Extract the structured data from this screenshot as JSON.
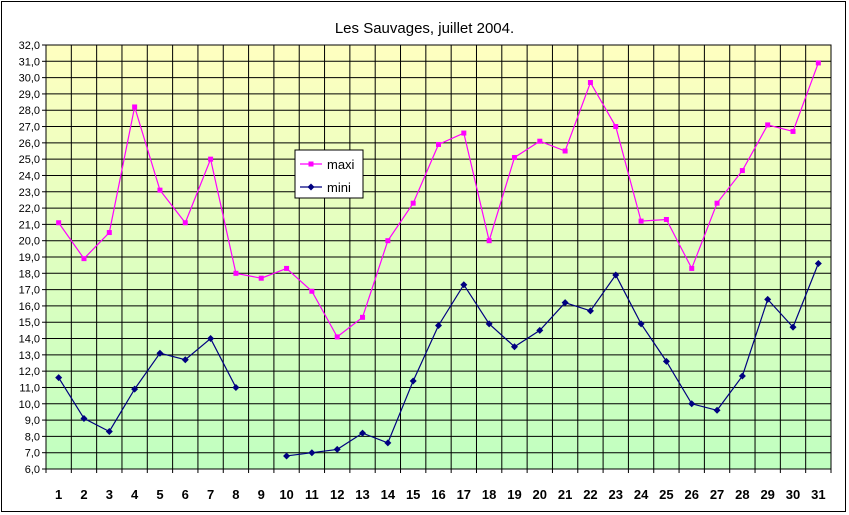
{
  "chart_data": {
    "type": "line",
    "title": "Les Sauvages, juillet 2004.",
    "xlabel": "",
    "ylabel": "",
    "categories": [
      "1",
      "2",
      "3",
      "4",
      "5",
      "6",
      "7",
      "8",
      "9",
      "10",
      "11",
      "12",
      "13",
      "14",
      "15",
      "16",
      "17",
      "18",
      "19",
      "20",
      "21",
      "22",
      "23",
      "24",
      "25",
      "26",
      "27",
      "28",
      "29",
      "30",
      "31"
    ],
    "ylim": [
      6.0,
      32.0
    ],
    "ytick_step": 1.0,
    "ytick_labels": [
      "6,0",
      "7,0",
      "8,0",
      "9,0",
      "10,0",
      "11,0",
      "12,0",
      "13,0",
      "14,0",
      "15,0",
      "16,0",
      "17,0",
      "18,0",
      "19,0",
      "20,0",
      "21,0",
      "22,0",
      "23,0",
      "24,0",
      "25,0",
      "26,0",
      "27,0",
      "28,0",
      "29,0",
      "30,0",
      "31,0",
      "32,0"
    ],
    "grid": true,
    "legend_position": "upper-center-left",
    "background_gradient": [
      "#ffffc0",
      "#c0ffc0"
    ],
    "series": [
      {
        "name": "maxi",
        "color": "#ff00ff",
        "marker": "square",
        "values": [
          21.1,
          18.9,
          20.5,
          28.2,
          23.1,
          21.1,
          25.0,
          18.0,
          17.7,
          18.3,
          16.9,
          14.1,
          15.3,
          20.0,
          22.3,
          25.9,
          26.6,
          20.0,
          25.1,
          26.1,
          25.5,
          29.7,
          27.0,
          21.2,
          21.3,
          18.3,
          22.3,
          24.3,
          27.1,
          26.7,
          30.9
        ]
      },
      {
        "name": "mini",
        "color": "#000080",
        "marker": "diamond",
        "values": [
          11.6,
          9.1,
          8.3,
          10.9,
          13.1,
          12.7,
          14.0,
          11.0,
          null,
          6.8,
          7.0,
          7.2,
          8.2,
          7.6,
          11.4,
          14.8,
          17.3,
          14.9,
          13.5,
          14.5,
          16.2,
          15.7,
          17.9,
          14.9,
          12.6,
          10.0,
          9.6,
          11.7,
          16.4,
          14.7,
          18.6
        ]
      }
    ]
  }
}
